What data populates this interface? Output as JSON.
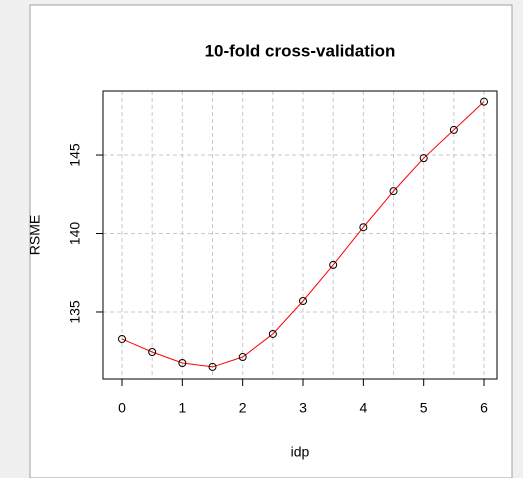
{
  "chart_data": {
    "type": "line",
    "title": "10-fold cross-validation",
    "x_label": "idp",
    "y_label": "RSME",
    "x": [
      0,
      0.5,
      1,
      1.5,
      2,
      2.5,
      3,
      3.5,
      4,
      4.5,
      5,
      5.5,
      6
    ],
    "series": [
      {
        "name": "RSME",
        "color": "#ff0000",
        "marker_color": "#000000",
        "values": [
          133.28,
          132.45,
          131.75,
          131.5,
          132.13,
          133.6,
          135.7,
          138.0,
          140.4,
          142.7,
          144.8,
          146.6,
          148.4
        ]
      }
    ],
    "xlim": [
      -0.315,
      6.215
    ],
    "ylim": [
      130.73,
      149.08
    ],
    "xticks": [
      0,
      1,
      2,
      3,
      4,
      5,
      6
    ],
    "yticks": [
      135,
      140,
      145
    ],
    "grid": true
  }
}
